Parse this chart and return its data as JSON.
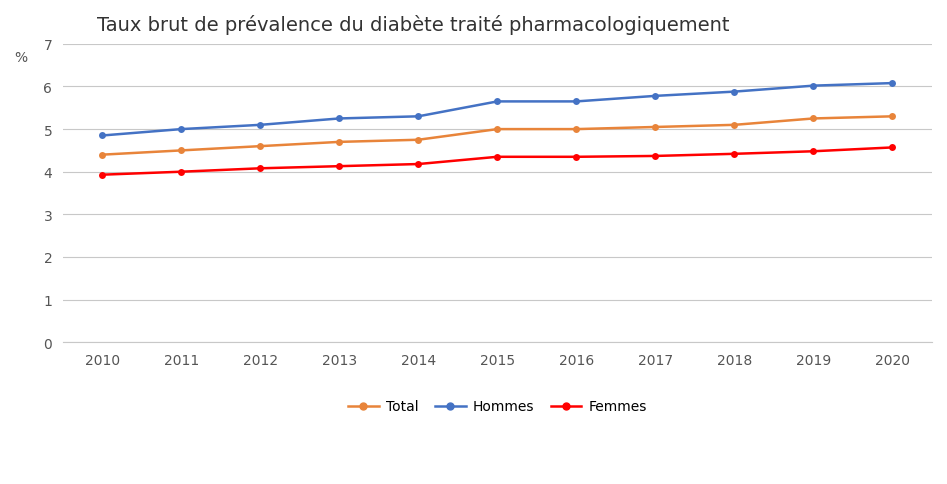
{
  "title": "Taux brut de prévalence du diabète traité pharmacologiquement",
  "ylabel": "%",
  "years": [
    2010,
    2011,
    2012,
    2013,
    2014,
    2015,
    2016,
    2017,
    2018,
    2019,
    2020
  ],
  "total": [
    4.4,
    4.5,
    4.6,
    4.7,
    4.75,
    5.0,
    5.0,
    5.05,
    5.1,
    5.25,
    5.3
  ],
  "hommes": [
    4.85,
    5.0,
    5.1,
    5.25,
    5.3,
    5.65,
    5.65,
    5.78,
    5.88,
    6.02,
    6.08
  ],
  "femmes": [
    3.93,
    4.0,
    4.08,
    4.13,
    4.18,
    4.35,
    4.35,
    4.37,
    4.42,
    4.48,
    4.57
  ],
  "color_total": "#E8843A",
  "color_hommes": "#4472C4",
  "color_femmes": "#FF0000",
  "ylim": [
    0,
    7
  ],
  "yticks": [
    0,
    1,
    2,
    3,
    4,
    5,
    6,
    7
  ],
  "background_color": "#FFFFFF",
  "grid_color": "#C8C8C8",
  "title_fontsize": 14,
  "tick_fontsize": 10,
  "legend_labels": [
    "Total",
    "Hommes",
    "Femmes"
  ]
}
